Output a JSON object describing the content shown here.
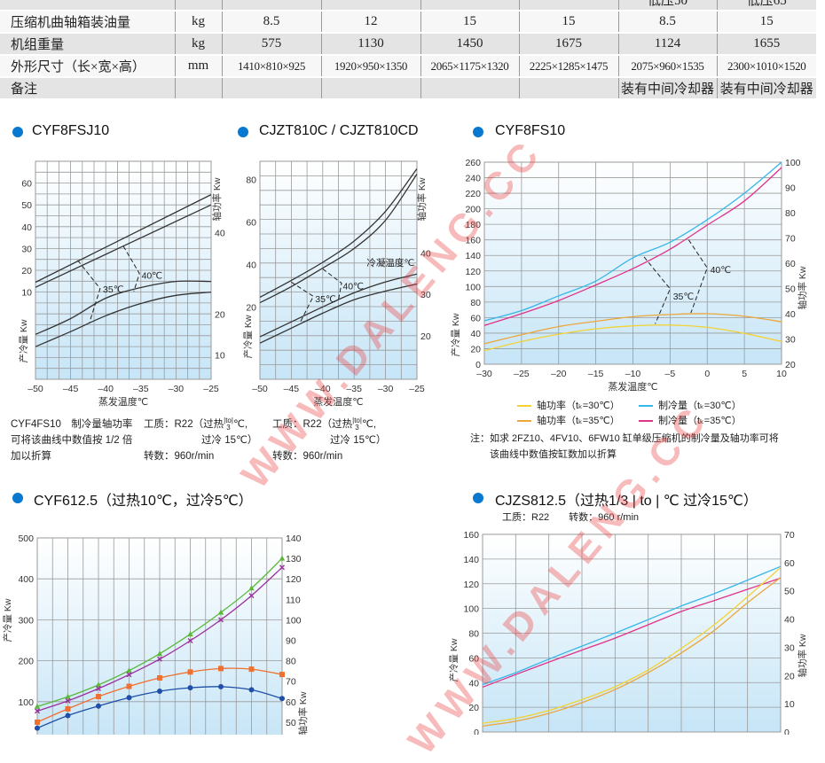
{
  "spec_table": {
    "top_partial": [
      "",
      "",
      "",
      "",
      "",
      "",
      "低压50",
      "低压65"
    ],
    "rows": [
      {
        "label": "压缩机曲轴箱装油量",
        "unit": "kg",
        "values": [
          "8.5",
          "12",
          "15",
          "15",
          "8.5",
          "15"
        ]
      },
      {
        "label": "机组重量",
        "unit": "kg",
        "values": [
          "575",
          "1130",
          "1450",
          "1675",
          "1124",
          "1655"
        ]
      },
      {
        "label": "外形尺寸（长×宽×高）",
        "unit": "mm",
        "values": [
          "1410×810×925",
          "1920×950×1350",
          "2065×1175×1320",
          "2225×1285×1475",
          "2075×960×1535",
          "2300×1010×1520"
        ]
      },
      {
        "label": "备注",
        "unit": "",
        "values": [
          "",
          "",
          "",
          "",
          "装有中间冷却器",
          "装有中间冷却器"
        ]
      }
    ]
  },
  "watermark": "WWW.DALENG.CC",
  "captions": {
    "c1_note": [
      "CYF4FS10　制冷量轴功率",
      "可将该曲线中数值按 1/2 倍",
      "加以折算"
    ],
    "work_fluid": "工质：R22（过热",
    "frac_top": "|to|",
    "frac_bottom": "3",
    "work_fluid_end": "℃,",
    "subcool": "过冷 15℃）",
    "speed": "转数：960r/min",
    "c3_note": [
      "注：如求 2FZ10、4FV10、6FW10 缸单级压缩机的制冷量及轴功率可将",
      "该曲线中数值按缸数加以折算"
    ],
    "c5_sub": "工质：R22　　转数：960 r/min"
  },
  "chart_data": [
    {
      "id": "c1",
      "type": "line",
      "title": "CYF8FSJ10",
      "xlabel": "蒸发温度℃",
      "ylabel": "产冷量 Kw",
      "ylabel_right": "轴功率 Kw",
      "xlim": [
        -50,
        -25
      ],
      "ylim": [
        -30,
        70
      ],
      "ylim_right": [
        4,
        57.5
      ],
      "grid": true,
      "xticks": [
        -50,
        -45,
        -40,
        -35,
        -30,
        -25
      ],
      "yticks": [
        10,
        20,
        30,
        40,
        50,
        60
      ],
      "yticks_right": [
        10,
        20,
        40
      ],
      "series": [
        {
          "axis": "left",
          "color": "#333333",
          "x": [
            -50,
            -25
          ],
          "y": [
            14.5,
            54.7
          ]
        },
        {
          "axis": "left",
          "color": "#333333",
          "x": [
            -50,
            -25
          ],
          "y": [
            12.2,
            50
          ]
        },
        {
          "axis": "right",
          "color": "#333333",
          "x": [
            -50,
            -45,
            -40,
            -35,
            -30,
            -25
          ],
          "y": [
            15,
            18.9,
            23.9,
            26.5,
            28,
            28
          ]
        },
        {
          "axis": "right",
          "color": "#333333",
          "x": [
            -50,
            -45,
            -40,
            -35,
            -30,
            -25
          ],
          "y": [
            12,
            15.7,
            19.6,
            22.6,
            24.6,
            25.4
          ]
        }
      ],
      "dashed": [
        [
          [
            -44,
            24.6
          ],
          [
            -40.8,
            11.6
          ],
          [
            -42.3,
            -3.8
          ]
        ],
        [
          [
            -37.5,
            31.1
          ],
          [
            -35.2,
            18.5
          ],
          [
            -36,
            10.4
          ]
        ]
      ],
      "annotations": [
        {
          "text": "35℃",
          "x": -40.4,
          "y": 11.5
        },
        {
          "text": "40℃",
          "x": -34.9,
          "y": 17.8
        }
      ]
    },
    {
      "id": "c2",
      "type": "line",
      "title": "CJZT810C / CJZT810CD",
      "xlabel": "蒸发温度℃",
      "ylabel": "产冷量 Kw",
      "ylabel_right": "轴功率 Kw",
      "xlim": [
        -50,
        -25
      ],
      "ylim": [
        -14,
        88.5
      ],
      "ylim_right": [
        9.6,
        62
      ],
      "grid": true,
      "xticks": [
        -50,
        -45,
        -40,
        -35,
        -30,
        -25
      ],
      "yticks": [
        20,
        40,
        60,
        80
      ],
      "yticks_right": [
        20,
        30,
        40
      ],
      "series": [
        {
          "axis": "left",
          "color": "#333333",
          "x": [
            -50,
            -45,
            -40,
            -35,
            -30,
            -25
          ],
          "y": [
            24.6,
            32.5,
            41,
            51,
            65,
            85
          ]
        },
        {
          "axis": "left",
          "color": "#333333",
          "x": [
            -50,
            -45,
            -40,
            -35,
            -30,
            -25
          ],
          "y": [
            22,
            29.6,
            38.3,
            47.5,
            60.8,
            82.5
          ]
        },
        {
          "axis": "right",
          "color": "#333333",
          "x": [
            -50,
            -45,
            -40,
            -35,
            -30,
            -25
          ],
          "y": [
            19.8,
            23.4,
            27,
            30.4,
            33,
            34.9
          ]
        },
        {
          "axis": "right",
          "color": "#333333",
          "x": [
            -50,
            -45,
            -40,
            -35,
            -30,
            -25
          ],
          "y": [
            18.3,
            21.9,
            25.5,
            28.7,
            30.8,
            32.5
          ]
        }
      ],
      "dashed": [
        [
          [
            -45,
            31.7
          ],
          [
            -41.5,
            25
          ],
          [
            -43.5,
            13.3
          ]
        ],
        [
          [
            -40,
            37.9
          ],
          [
            -37,
            31.2
          ],
          [
            -37.5,
            23.3
          ]
        ]
      ],
      "annotations": [
        {
          "text": "冷凝温度℃",
          "x": -33,
          "y": 41
        },
        {
          "text": "40℃",
          "x": -36.8,
          "y": 30
        },
        {
          "text": "35℃",
          "x": -41.2,
          "y": 24
        }
      ]
    },
    {
      "id": "c3",
      "type": "line",
      "title": "CYF8FS10",
      "xlabel": "蒸发温度℃",
      "ylabel": "产冷量 Kw",
      "ylabel_right": "轴功率 Kw",
      "xlim": [
        -30,
        10
      ],
      "ylim": [
        0,
        260
      ],
      "ylim_right": [
        20,
        100
      ],
      "grid": true,
      "xticks": [
        -30,
        -25,
        -20,
        -15,
        -10,
        -5,
        0,
        5,
        10
      ],
      "yticks": [
        0,
        20,
        40,
        60,
        80,
        100,
        120,
        140,
        160,
        180,
        200,
        220,
        240,
        260
      ],
      "yticks_right": [
        20,
        30,
        40,
        50,
        60,
        70,
        80,
        90,
        100
      ],
      "legend_position": "bottom",
      "series": [
        {
          "name": "轴功率（tₖ=30℃）",
          "axis": "right",
          "color": "#f2d234",
          "x": [
            -30,
            -25,
            -20,
            -15,
            -10,
            -5,
            0,
            5,
            10
          ],
          "y": [
            25.4,
            29,
            31.9,
            34,
            35.2,
            35.5,
            34.6,
            32.2,
            29
          ]
        },
        {
          "name": "制冷量（tₖ=30℃）",
          "axis": "left",
          "color": "#36b6ea",
          "x": [
            -30,
            -25,
            -20,
            -15,
            -10,
            -5,
            0,
            5,
            10
          ],
          "y": [
            56,
            69,
            88,
            107,
            137,
            157,
            186,
            220,
            260
          ]
        },
        {
          "name": "轴功率（tₖ=35℃）",
          "axis": "right",
          "color": "#eca63a",
          "x": [
            -30,
            -25,
            -20,
            -15,
            -10,
            -5,
            0,
            5,
            10
          ],
          "y": [
            28.1,
            31.7,
            34.9,
            37,
            38.8,
            39.7,
            40,
            39,
            36.8
          ]
        },
        {
          "name": "制冷量（tₖ=35℃）",
          "axis": "left",
          "color": "#e0338a",
          "x": [
            -30,
            -25,
            -20,
            -15,
            -10,
            -5,
            0,
            5,
            10
          ],
          "y": [
            50,
            65,
            82,
            102,
            123,
            148,
            179,
            210,
            253
          ]
        }
      ],
      "dashed": [
        [
          [
            -8.5,
            138
          ],
          [
            -5,
            97
          ],
          [
            -7,
            52
          ]
        ],
        [
          [
            -2.5,
            160
          ],
          [
            0,
            124
          ],
          [
            -2.2,
            66
          ]
        ]
      ],
      "annotations": [
        {
          "text": "35℃",
          "x": -4.6,
          "y": 88
        },
        {
          "text": "40℃",
          "x": 0.4,
          "y": 122
        }
      ]
    },
    {
      "id": "c4",
      "type": "line",
      "title": "CYF612.5（过热10℃，过冷5℃）",
      "ylabel": "产冷量 Kw",
      "ylabel_right": "轴功率 Kw",
      "ylim": [
        0,
        500
      ],
      "ylim_right": [
        40,
        140
      ],
      "grid": true,
      "yticks": [
        100,
        200,
        300,
        400,
        500
      ],
      "yticks_right": [
        50,
        60,
        70,
        80,
        90,
        100,
        110,
        120,
        130,
        140
      ],
      "series": [
        {
          "axis": "left",
          "color": "#5cb83a",
          "marker": "triangle",
          "values": [
            88,
            112,
            141,
            176,
            217,
            265,
            318,
            377,
            450
          ]
        },
        {
          "axis": "left",
          "color": "#9b2f9e",
          "marker": "x",
          "values": [
            77,
            102,
            132,
            166,
            204,
            249,
            300,
            359,
            428
          ]
        },
        {
          "axis": "right",
          "color": "#f07030",
          "marker": "square",
          "values": [
            50,
            56.5,
            62.5,
            67.5,
            71.6,
            74.5,
            76.2,
            75.9,
            73.3
          ]
        },
        {
          "axis": "right",
          "color": "#1f4fa8",
          "marker": "circle",
          "values": [
            47.1,
            53.2,
            57.9,
            62,
            65.1,
            66.8,
            67.3,
            65.8,
            61.5
          ]
        }
      ]
    },
    {
      "id": "c5",
      "type": "line",
      "title": "CJZS812.5（过热1/3 | to | ℃  过冷15℃）",
      "ylabel": "产冷量 Kw",
      "ylabel_right": "轴功率 Kw",
      "ylim": [
        0,
        160
      ],
      "ylim_right": [
        0,
        70
      ],
      "grid": true,
      "yticks": [
        0,
        20,
        40,
        60,
        80,
        100,
        120,
        140,
        160
      ],
      "yticks_right": [
        0,
        10,
        20,
        30,
        40,
        50,
        60,
        70
      ],
      "series": [
        {
          "axis": "left",
          "color": "#36b6ea",
          "values": [
            38.4,
            48,
            59,
            69.5,
            80,
            91,
            102,
            112,
            123,
            134
          ]
        },
        {
          "axis": "left",
          "color": "#e0338a",
          "values": [
            36.3,
            46.5,
            56.6,
            66.3,
            76,
            86.8,
            97.6,
            106.5,
            115.5,
            124.6
          ]
        },
        {
          "axis": "right",
          "color": "#f2d234",
          "values": [
            3.1,
            4.8,
            7.6,
            11.5,
            16,
            22,
            29.6,
            38,
            47.9,
            58.3
          ]
        },
        {
          "axis": "right",
          "color": "#eca63a",
          "values": [
            2.1,
            3.8,
            6.6,
            10.4,
            15,
            21,
            28,
            36,
            45.8,
            54.7
          ]
        }
      ]
    }
  ]
}
